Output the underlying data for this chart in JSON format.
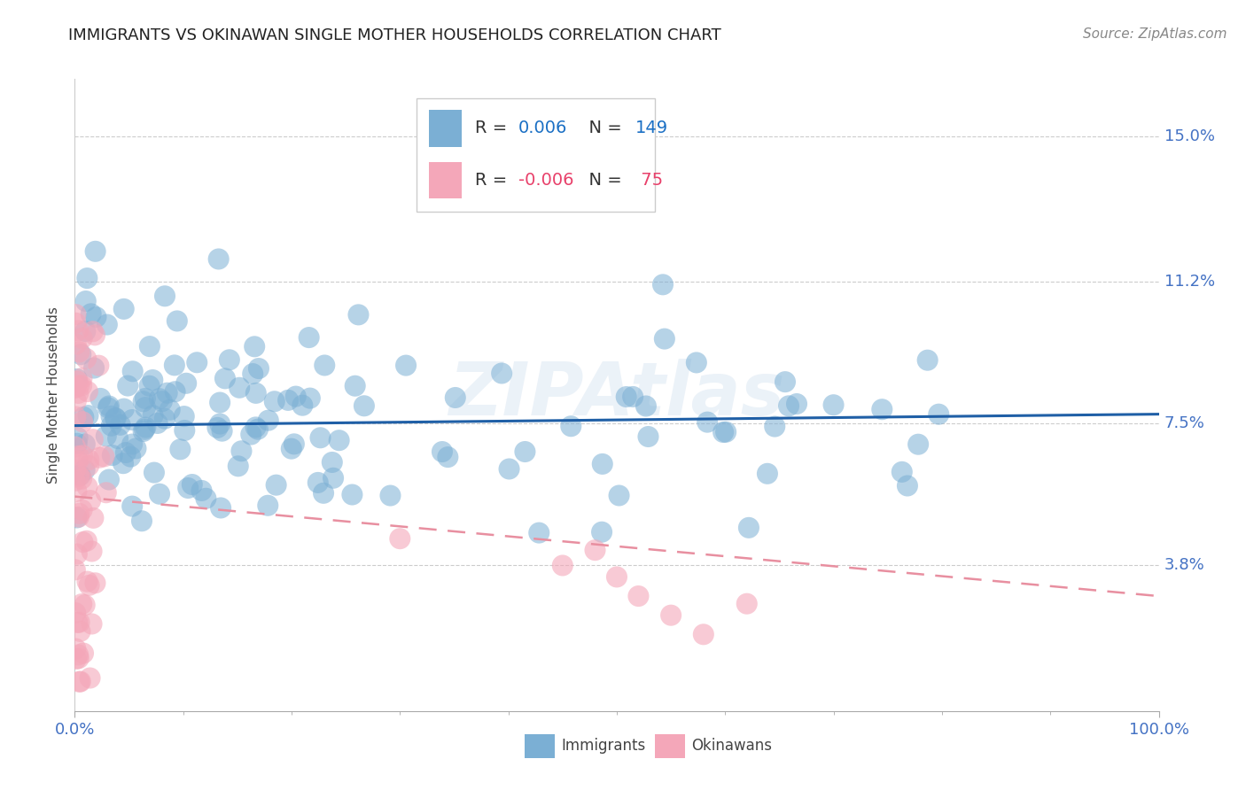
{
  "title": "IMMIGRANTS VS OKINAWAN SINGLE MOTHER HOUSEHOLDS CORRELATION CHART",
  "source": "Source: ZipAtlas.com",
  "ylabel": "Single Mother Households",
  "xlim": [
    0,
    100
  ],
  "ylim": [
    0,
    16.5
  ],
  "ytick_vals": [
    3.8,
    7.5,
    11.2,
    15.0
  ],
  "ytick_labels": [
    "3.8%",
    "7.5%",
    "11.2%",
    "15.0%"
  ],
  "xtick_vals": [
    0,
    100
  ],
  "xtick_labels": [
    "0.0%",
    "100.0%"
  ],
  "blue_scatter_color": "#7bafd4",
  "pink_scatter_color": "#f4a7b9",
  "blue_line_color": "#1f5fa6",
  "pink_line_color": "#e88fa0",
  "tick_label_color": "#4472c4",
  "title_fontsize": 13,
  "source_fontsize": 11,
  "watermark_text": "ZIPAtlas",
  "grid_color": "#cccccc",
  "blue_intercept": 7.45,
  "blue_slope": 0.003,
  "pink_intercept": 5.6,
  "pink_slope": -0.026
}
